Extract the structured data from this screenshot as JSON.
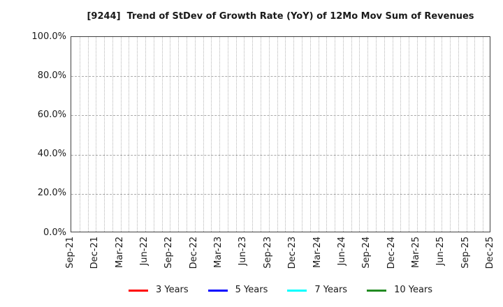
{
  "chart_data": {
    "type": "line",
    "title": "[9244]  Trend of StDev of Growth Rate (YoY) of 12Mo Mov Sum of Revenues",
    "x_tick_labels": [
      "Sep-21",
      "Dec-21",
      "Mar-22",
      "Jun-22",
      "Sep-22",
      "Dec-22",
      "Mar-23",
      "Jun-23",
      "Sep-23",
      "Dec-23",
      "Mar-24",
      "Jun-24",
      "Sep-24",
      "Dec-24",
      "Mar-25",
      "Jun-25",
      "Sep-25",
      "Dec-25"
    ],
    "months_per_tick": 3,
    "minor_grid": "monthly",
    "y_ticks": [
      0,
      20,
      40,
      60,
      80,
      100
    ],
    "y_tick_labels": [
      "0.0%",
      "20.0%",
      "40.0%",
      "60.0%",
      "80.0%",
      "100.0%"
    ],
    "ylim": [
      0,
      100
    ],
    "grid": true,
    "legend_position": "bottom",
    "series": [
      {
        "name": "3 Years",
        "color": "#ff0000",
        "values": []
      },
      {
        "name": "5 Years",
        "color": "#0000ff",
        "values": []
      },
      {
        "name": "7 Years",
        "color": "#00ffff",
        "values": []
      },
      {
        "name": "10 Years",
        "color": "#228b22",
        "values": []
      }
    ]
  },
  "colors": {
    "axis_border": "#404040",
    "v_grid": "#b5b5b5",
    "h_grid": "#a8a8a8",
    "tick_text": "#1a1a1a"
  }
}
